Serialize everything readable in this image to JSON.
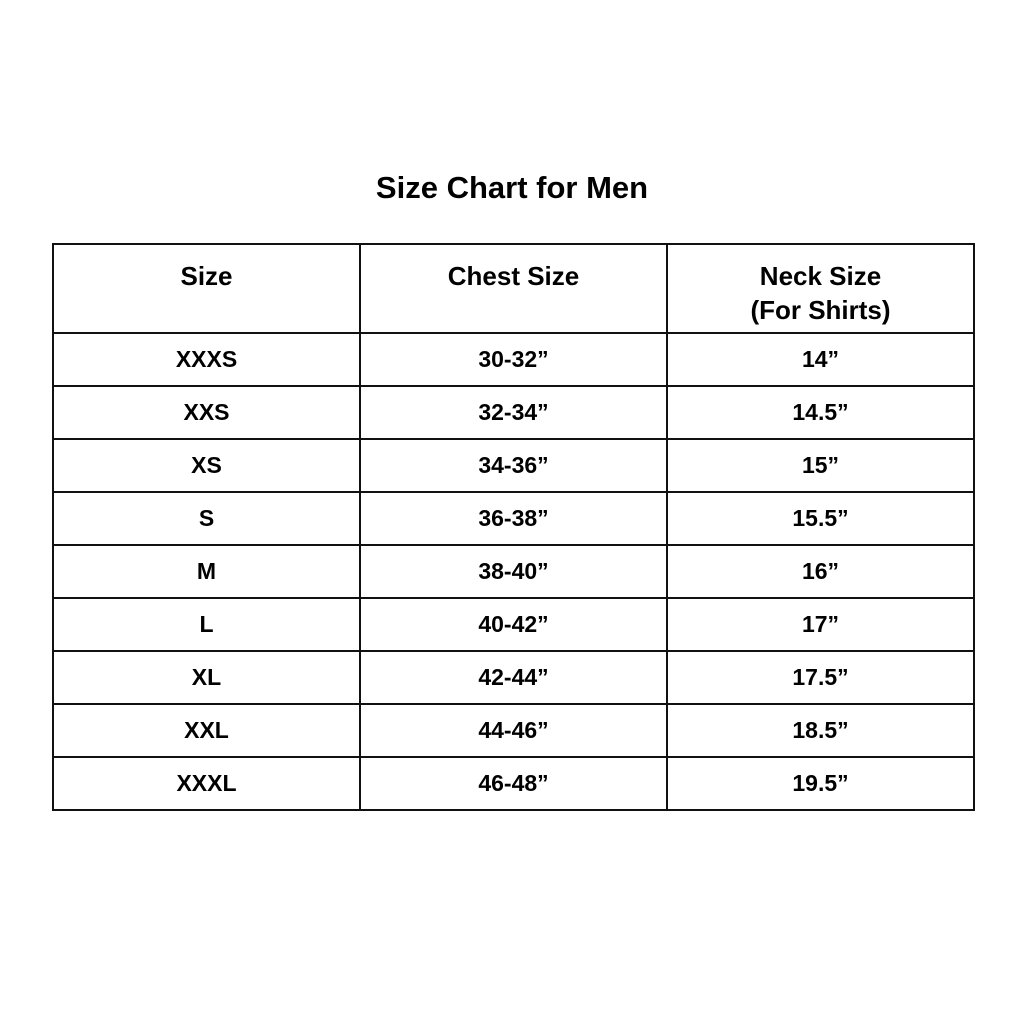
{
  "title": "Size Chart for Men",
  "headers": [
    "Size",
    "Chest Size",
    "Neck Size",
    "(For Shirts)"
  ],
  "rows": [
    [
      "XXXS",
      "30-32”",
      "14”"
    ],
    [
      "XXS",
      "32-34”",
      "14.5”"
    ],
    [
      "XS",
      "34-36”",
      "15”"
    ],
    [
      "S",
      "36-38”",
      "15.5”"
    ],
    [
      "M",
      "38-40”",
      "16”"
    ],
    [
      "L",
      "40-42”",
      "17”"
    ],
    [
      "XL",
      "42-44”",
      "17.5”"
    ],
    [
      "XXL",
      "44-46”",
      "18.5”"
    ],
    [
      "XXXL",
      "46-48”",
      "19.5”"
    ]
  ]
}
